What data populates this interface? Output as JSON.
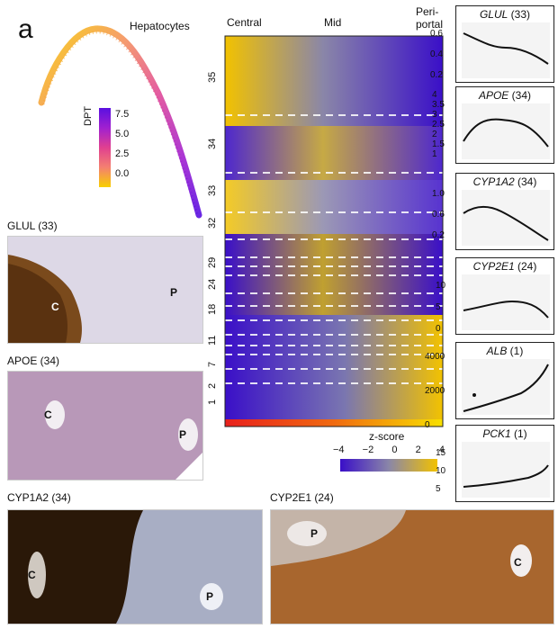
{
  "figure": {
    "panel_letter": "a",
    "trajectory": {
      "title": "Hepatocytes",
      "colorbar_label": "DPT",
      "colorbar_ticks": [
        "7.5",
        "5.0",
        "2.5",
        "0.0"
      ],
      "gradient_colors": [
        "#f8d000",
        "#f48070",
        "#e04090",
        "#a020d0",
        "#6010e0"
      ]
    },
    "heatmap": {
      "col_labels": [
        "Central",
        "Mid",
        "Peri-\nportal"
      ],
      "col_central": "Central",
      "col_mid": "Mid",
      "col_peri1": "Peri-",
      "col_peri2": "portal",
      "row_ticks": [
        "35",
        "34",
        "33",
        "32",
        "29",
        "24",
        "18",
        "11",
        "7",
        "2",
        "1"
      ],
      "zscore_label": "z-score",
      "zscore_ticks": [
        "−4",
        "−2",
        "0",
        "2",
        "4"
      ],
      "colors": {
        "low": "#3a0fc8",
        "mid": "#8a86a8",
        "high": "#f2c200"
      }
    },
    "ihc": [
      {
        "name": "GLUL (33)",
        "labels": [
          "C",
          "P"
        ]
      },
      {
        "name": "APOE (34)",
        "labels": [
          "C",
          "P"
        ]
      },
      {
        "name": "CYP1A2 (34)",
        "labels": [
          "C",
          "P"
        ]
      },
      {
        "name": "CYP2E1 (24)",
        "labels": [
          "P",
          "C"
        ]
      }
    ],
    "trend_plots": [
      {
        "gene": "GLUL",
        "cluster": "(33)",
        "yticks": [
          "0.6",
          "0.4",
          "0.2"
        ]
      },
      {
        "gene": "APOE",
        "cluster": "(34)",
        "yticks": [
          "4",
          "3.5",
          "3",
          "2.5",
          "2",
          "1.5",
          "1"
        ]
      },
      {
        "gene": "CYP1A2",
        "cluster": "(34)",
        "yticks": [
          "1.0",
          "0.6",
          "0.2"
        ]
      },
      {
        "gene": "CYP2E1",
        "cluster": "(24)",
        "yticks": [
          "10",
          "5",
          "0"
        ]
      },
      {
        "gene": "ALB",
        "cluster": "(1)",
        "yticks": [
          "4000",
          "2000",
          "0"
        ]
      },
      {
        "gene": "PCK1",
        "cluster": "(1)",
        "yticks": [
          "15",
          "10",
          "5"
        ]
      }
    ]
  }
}
